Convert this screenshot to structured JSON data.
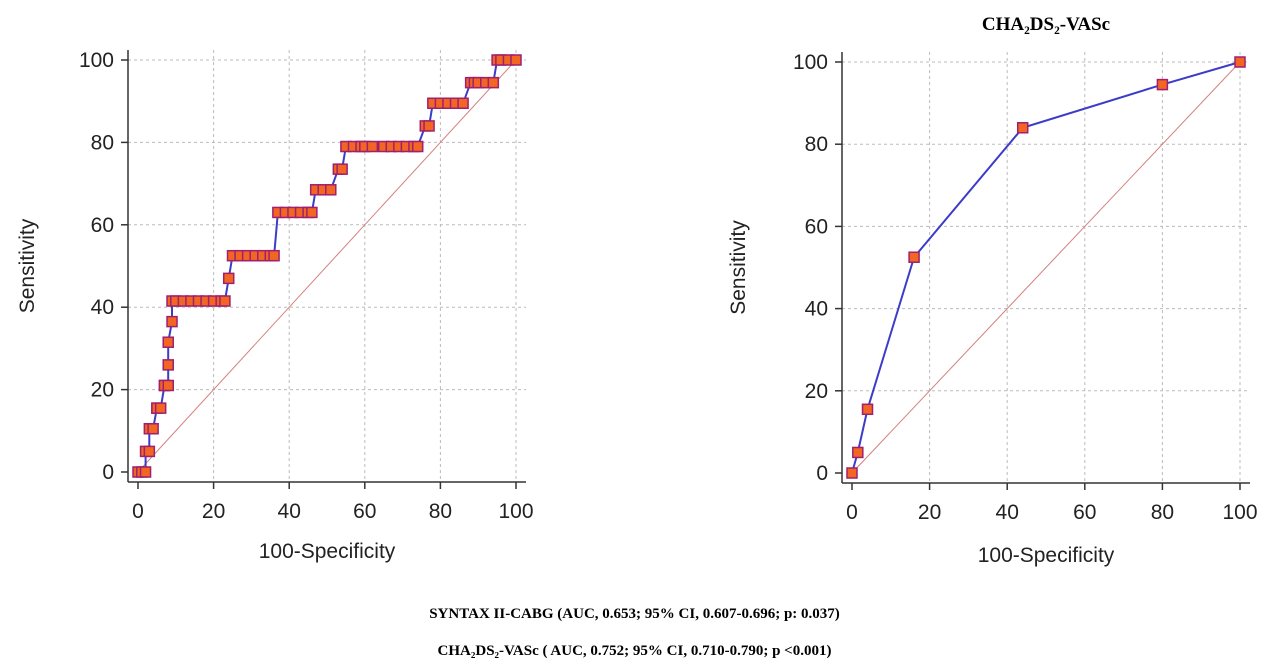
{
  "chart_data": [
    {
      "type": "line",
      "title": "",
      "xlabel": "100-Specificity",
      "ylabel": "Sensitivity",
      "xlim": [
        0,
        100
      ],
      "ylim": [
        0,
        100
      ],
      "xticks": [
        "0",
        "20",
        "40",
        "60",
        "80",
        "100"
      ],
      "yticks": [
        "0",
        "20",
        "40",
        "60",
        "80",
        "100"
      ],
      "grid": true,
      "reference_line": true,
      "colors": {
        "curve": "#3c3cc8",
        "marker": "#f26522",
        "marker_edge": "#a0206e",
        "reference": "#d48080",
        "grid": "#bbbbbb"
      },
      "series": [
        {
          "x": [
            0,
            1,
            2,
            2,
            3,
            3,
            4,
            5,
            5,
            6,
            7,
            7,
            8,
            8,
            8,
            9,
            9,
            10,
            12,
            14,
            16,
            18,
            20,
            22,
            23,
            24,
            25,
            27,
            29,
            31,
            33,
            35,
            36,
            37,
            39,
            41,
            43,
            45,
            46,
            47,
            49,
            51,
            53,
            54,
            55,
            57,
            59,
            60,
            62,
            65,
            67,
            69,
            71,
            73,
            74,
            76,
            77,
            78,
            80,
            82,
            84,
            86,
            88,
            89,
            90,
            92,
            94,
            95,
            96,
            98,
            100
          ],
          "y": [
            0,
            0,
            0,
            5,
            5,
            10.5,
            10.5,
            15.5,
            15.5,
            15.5,
            21,
            21,
            21,
            26,
            31.5,
            36.5,
            41.5,
            41.5,
            41.5,
            41.5,
            41.5,
            41.5,
            41.5,
            41.5,
            41.5,
            47,
            52.5,
            52.5,
            52.5,
            52.5,
            52.5,
            52.5,
            52.5,
            63,
            63,
            63,
            63,
            63,
            63,
            68.5,
            68.5,
            68.5,
            73.5,
            73.5,
            79,
            79,
            79,
            79,
            79,
            79,
            79,
            79,
            79,
            79,
            79,
            84,
            84,
            89.5,
            89.5,
            89.5,
            89.5,
            89.5,
            94.5,
            94.5,
            94.5,
            94.5,
            94.5,
            100,
            100,
            100,
            100
          ]
        }
      ]
    },
    {
      "type": "line",
      "title": "CHA₂DS₂-VASc",
      "xlabel": "100-Specificity",
      "ylabel": "Sensitivity",
      "xlim": [
        0,
        100
      ],
      "ylim": [
        0,
        100
      ],
      "xticks": [
        "0",
        "20",
        "40",
        "60",
        "80",
        "100"
      ],
      "yticks": [
        "0",
        "20",
        "40",
        "60",
        "80",
        "100"
      ],
      "grid": true,
      "reference_line": true,
      "colors": {
        "curve": "#3c3cc8",
        "marker": "#f26522",
        "marker_edge": "#a0206e",
        "reference": "#d48080",
        "grid": "#bbbbbb"
      },
      "series": [
        {
          "x": [
            0,
            1.5,
            4,
            16,
            44,
            80,
            100
          ],
          "y": [
            0,
            5,
            15.5,
            52.5,
            84,
            94.5,
            100
          ]
        }
      ]
    }
  ],
  "captions": {
    "syntax": "SYNTAX II-CABG (AUC, 0.653; 95% CI, 0.607-0.696; p: 0.037)",
    "cha2ds2": "CHA₂DS₂-VASc ( AUC, 0.752; 95% CI, 0.710-0.790; p <0.001)"
  }
}
